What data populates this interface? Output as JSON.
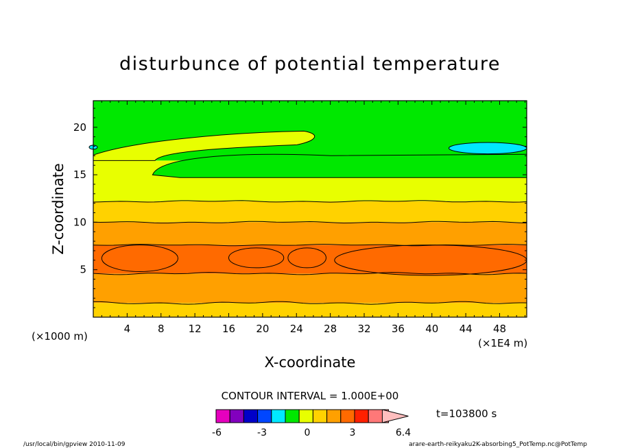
{
  "chart_data": {
    "type": "heatmap",
    "title": "disturbunce of potential temperature",
    "xlabel": "X-coordinate",
    "ylabel": "Z-coordinate",
    "x_unit_left": "(×1000 m)",
    "x_unit_right": "(×1E4 m)",
    "xlim": [
      0,
      51.2
    ],
    "ylim": [
      0,
      22.8
    ],
    "x_ticks": [
      4,
      8,
      12,
      16,
      20,
      24,
      28,
      32,
      36,
      40,
      44,
      48
    ],
    "x_tick_labels": [
      "4",
      "8",
      "12",
      "16",
      "20",
      "24",
      "28",
      "32",
      "36",
      "40",
      "44",
      "48"
    ],
    "y_ticks": [
      5,
      10,
      15,
      20
    ],
    "y_tick_labels": [
      "5",
      "10",
      "15",
      "20"
    ],
    "contour_interval_label": "CONTOUR INTERVAL = 1.000E+00",
    "time_label": "t=103800 s",
    "bands": [
      {
        "range": [
          1,
          2
        ],
        "color": "#ffd200",
        "zlo": 0,
        "zhi": 1.5
      },
      {
        "range": [
          2,
          3
        ],
        "color": "#ffa000",
        "zlo": 1.5,
        "zhi": 4.6
      },
      {
        "range": [
          3,
          4
        ],
        "color": "#ff6a00",
        "zlo": 4.6,
        "zhi": 7.6
      },
      {
        "range": [
          2,
          3
        ],
        "color": "#ffa000",
        "zlo": 7.6,
        "zhi": 10.0
      },
      {
        "range": [
          1,
          2
        ],
        "color": "#ffd200",
        "zlo": 10.0,
        "zhi": 12.2
      },
      {
        "range": [
          0,
          1
        ],
        "color": "#e8ff00",
        "zlo": 12.2,
        "zhi": 16.5
      },
      {
        "range": [
          -1,
          0
        ],
        "color": "#00e800",
        "zlo": 16.5,
        "zhi": 22.8
      }
    ],
    "features": [
      {
        "label": "max 3-4",
        "x": [
          1,
          10
        ],
        "z": [
          4.8,
          7.6
        ],
        "color": "#ff6a00"
      },
      {
        "label": "max 3-4",
        "x": [
          16,
          22.5
        ],
        "z": [
          5.2,
          7.3
        ],
        "color": "#ff6a00"
      },
      {
        "label": "max 3-4",
        "x": [
          23,
          27.5
        ],
        "z": [
          5.2,
          7.3
        ],
        "color": "#ff6a00"
      },
      {
        "label": "max 3-4",
        "x": [
          28.5,
          51.2
        ],
        "z": [
          4.4,
          7.6
        ],
        "color": "#ff6a00"
      },
      {
        "label": "min -2 to -1",
        "x": [
          42,
          51.2
        ],
        "z": [
          17.2,
          18.4
        ],
        "color": "#00e8ff"
      },
      {
        "label": "green tongue",
        "x": [
          7,
          51.2
        ],
        "z": [
          14.7,
          17.3
        ],
        "color": "#00e800"
      },
      {
        "label": "yellow tongue",
        "x": [
          0,
          26.5
        ],
        "z": [
          16.5,
          19.6
        ],
        "color": "#e8ff00"
      }
    ],
    "colorbar": {
      "colors": [
        "#e600be",
        "#8200be",
        "#0000c8",
        "#0046ff",
        "#00e8ff",
        "#00e800",
        "#e8ff00",
        "#ffd200",
        "#ffa000",
        "#ff6a00",
        "#ff2000",
        "#ff7878",
        "#ffbebe"
      ],
      "labels": [
        "-6",
        "-3",
        "0",
        "3",
        "6.4"
      ]
    }
  },
  "footer": {
    "left": "/usr/local/bin/gpview  2010-11-09",
    "right": "arare-earth-reikyaku2K-absorbing5_PotTemp.nc@PotTemp"
  }
}
